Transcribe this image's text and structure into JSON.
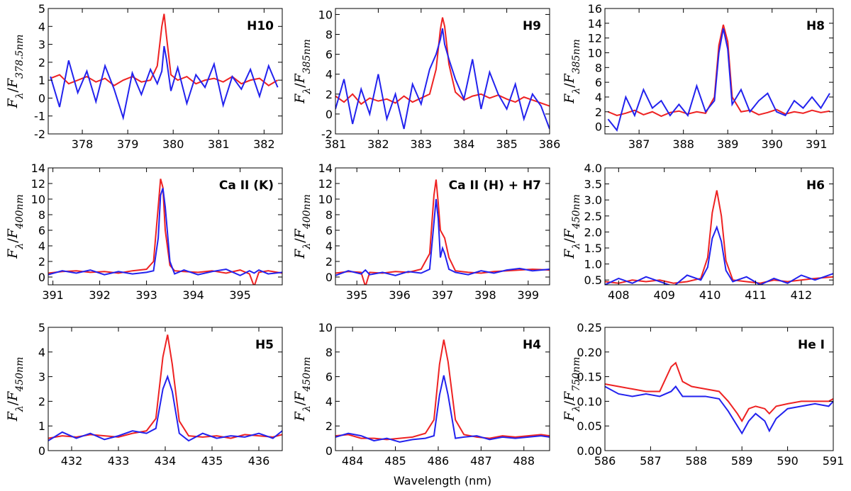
{
  "chart_data": [
    {
      "type": "line",
      "title": "H10",
      "ylabel": [
        "F",
        "λ",
        "/",
        "F",
        "378.5nm"
      ],
      "xlim": [
        377.25,
        382.4
      ],
      "xticks": [
        378,
        379,
        380,
        381,
        382
      ],
      "ylim": [
        -2,
        5
      ],
      "yticks": [
        -2,
        -1,
        0,
        1,
        2,
        3,
        4,
        5
      ],
      "x": [
        377.3,
        377.5,
        377.7,
        377.9,
        378.1,
        378.3,
        378.5,
        378.7,
        378.9,
        379.1,
        379.3,
        379.5,
        379.65,
        379.75,
        379.8,
        379.85,
        379.95,
        380.1,
        380.3,
        380.5,
        380.7,
        380.9,
        381.1,
        381.3,
        381.5,
        381.7,
        381.9,
        382.1,
        382.3
      ],
      "series": [
        {
          "color": "#ee2222",
          "values": [
            1.1,
            1.3,
            0.8,
            1.0,
            1.2,
            0.9,
            1.1,
            0.7,
            1.0,
            1.2,
            0.9,
            1.0,
            1.8,
            4.0,
            4.7,
            3.5,
            1.3,
            1.0,
            1.2,
            0.8,
            1.0,
            1.1,
            0.9,
            1.2,
            0.8,
            1.0,
            1.1,
            0.7,
            1.0
          ]
        },
        {
          "color": "#2222ee",
          "values": [
            1.2,
            -0.5,
            2.1,
            0.3,
            1.5,
            -0.2,
            1.8,
            0.5,
            -1.1,
            1.4,
            0.2,
            1.6,
            0.8,
            1.5,
            2.9,
            2.2,
            0.4,
            1.7,
            -0.3,
            1.3,
            0.6,
            1.9,
            -0.4,
            1.2,
            0.5,
            1.6,
            0.1,
            1.8,
            0.6
          ]
        }
      ]
    },
    {
      "type": "line",
      "title": "H9",
      "ylabel": [
        "F",
        "λ",
        "/",
        "F",
        "385nm"
      ],
      "xlim": [
        381,
        386
      ],
      "xticks": [
        381,
        382,
        383,
        384,
        385,
        386
      ],
      "ylim": [
        -2,
        10.6
      ],
      "yticks": [
        -2,
        0,
        2,
        4,
        6,
        8,
        10
      ],
      "x": [
        381.0,
        381.2,
        381.4,
        381.6,
        381.8,
        382.0,
        382.2,
        382.4,
        382.6,
        382.8,
        383.0,
        383.2,
        383.35,
        383.45,
        383.5,
        383.55,
        383.65,
        383.8,
        384.0,
        384.2,
        384.4,
        384.6,
        384.8,
        385.0,
        385.2,
        385.4,
        385.6,
        385.8,
        386.0
      ],
      "series": [
        {
          "color": "#ee2222",
          "values": [
            1.8,
            1.2,
            2.0,
            1.0,
            1.6,
            1.3,
            1.5,
            1.1,
            1.8,
            1.2,
            1.6,
            2.0,
            4.5,
            8.5,
            9.7,
            8.8,
            5.0,
            2.2,
            1.4,
            1.8,
            2.0,
            1.6,
            1.9,
            1.5,
            1.2,
            1.7,
            1.4,
            1.1,
            0.8
          ]
        },
        {
          "color": "#2222ee",
          "values": [
            0.5,
            3.5,
            -1.0,
            2.5,
            0.0,
            4.0,
            -0.5,
            2.0,
            -1.5,
            3.0,
            1.0,
            4.5,
            6.0,
            7.5,
            8.6,
            7.0,
            5.5,
            3.5,
            1.5,
            5.5,
            0.5,
            4.2,
            2.0,
            0.5,
            3.0,
            -0.5,
            2.0,
            0.8,
            -1.5
          ]
        }
      ]
    },
    {
      "type": "line",
      "title": "H8",
      "ylabel": [
        "F",
        "λ",
        "/",
        "F",
        "385nm"
      ],
      "xlim": [
        386.23,
        391.38
      ],
      "xticks": [
        387,
        388,
        389,
        390,
        391
      ],
      "ylim": [
        -1,
        16
      ],
      "yticks": [
        0,
        2,
        4,
        6,
        8,
        10,
        12,
        14,
        16
      ],
      "x": [
        386.3,
        386.5,
        386.7,
        386.9,
        387.1,
        387.3,
        387.5,
        387.7,
        387.9,
        388.1,
        388.3,
        388.5,
        388.7,
        388.8,
        388.9,
        389.0,
        389.1,
        389.3,
        389.5,
        389.7,
        389.9,
        390.1,
        390.3,
        390.5,
        390.7,
        390.9,
        391.1,
        391.3
      ],
      "series": [
        {
          "color": "#ee2222",
          "values": [
            2.0,
            1.5,
            1.8,
            2.2,
            1.6,
            2.0,
            1.4,
            1.9,
            2.1,
            1.7,
            2.0,
            1.8,
            4.0,
            11.0,
            13.8,
            11.5,
            4.0,
            2.0,
            2.2,
            1.6,
            1.9,
            2.3,
            1.7,
            2.0,
            1.8,
            2.2,
            1.9,
            2.1
          ]
        },
        {
          "color": "#2222ee",
          "values": [
            1.0,
            -0.5,
            4.0,
            1.5,
            5.0,
            2.5,
            3.5,
            1.5,
            3.0,
            1.5,
            5.5,
            2.0,
            3.5,
            10.0,
            13.3,
            10.5,
            3.0,
            5.0,
            2.0,
            3.5,
            4.5,
            2.0,
            1.5,
            3.5,
            2.5,
            4.0,
            2.5,
            4.5
          ]
        }
      ]
    },
    {
      "type": "line",
      "title": "Ca II (K)",
      "ylabel": [
        "F",
        "λ",
        "/",
        "F",
        "400nm"
      ],
      "xlim": [
        390.9,
        395.9
      ],
      "xticks": [
        391,
        392,
        393,
        394,
        395
      ],
      "ylim": [
        -1,
        14
      ],
      "yticks": [
        0,
        2,
        4,
        6,
        8,
        10,
        12,
        14
      ],
      "x": [
        390.9,
        391.2,
        391.5,
        391.8,
        392.1,
        392.4,
        392.7,
        393.0,
        393.15,
        393.25,
        393.3,
        393.35,
        393.4,
        393.5,
        393.6,
        393.8,
        394.1,
        394.4,
        394.7,
        395.0,
        395.2,
        395.3,
        395.4,
        395.6,
        395.9
      ],
      "series": [
        {
          "color": "#ee2222",
          "values": [
            0.5,
            0.7,
            0.8,
            0.6,
            0.7,
            0.5,
            0.8,
            1.0,
            2.0,
            9.0,
            12.6,
            11.5,
            6.0,
            1.5,
            0.8,
            0.7,
            0.6,
            0.8,
            0.5,
            0.9,
            0.4,
            -1.2,
            0.6,
            0.8,
            0.5
          ]
        },
        {
          "color": "#2222ee",
          "values": [
            0.3,
            0.8,
            0.5,
            0.9,
            0.3,
            0.7,
            0.4,
            0.6,
            0.8,
            5.0,
            10.5,
            11.4,
            9.0,
            2.0,
            0.4,
            0.9,
            0.3,
            0.7,
            1.0,
            0.2,
            0.8,
            0.5,
            0.9,
            0.4,
            0.6
          ]
        }
      ]
    },
    {
      "type": "line",
      "title": "Ca II (H) + H7",
      "ylabel": [
        "F",
        "λ",
        "/",
        "F",
        "400nm"
      ],
      "xlim": [
        394.5,
        399.5
      ],
      "xticks": [
        395,
        396,
        397,
        398,
        399
      ],
      "ylim": [
        -1,
        14
      ],
      "yticks": [
        0,
        2,
        4,
        6,
        8,
        10,
        12,
        14
      ],
      "x": [
        394.5,
        394.8,
        395.1,
        395.2,
        395.3,
        395.6,
        395.9,
        396.2,
        396.5,
        396.7,
        396.8,
        396.85,
        396.9,
        396.95,
        397.0,
        397.05,
        397.15,
        397.3,
        397.6,
        397.9,
        398.2,
        398.5,
        398.8,
        399.1,
        399.5
      ],
      "series": [
        {
          "color": "#ee2222",
          "values": [
            0.5,
            0.7,
            0.6,
            -1.2,
            0.6,
            0.5,
            0.7,
            0.6,
            1.0,
            3.0,
            10.5,
            12.5,
            9.5,
            6.0,
            5.5,
            5.0,
            2.5,
            0.8,
            0.6,
            0.5,
            0.7,
            0.8,
            0.9,
            1.0,
            0.9
          ]
        },
        {
          "color": "#2222ee",
          "values": [
            0.2,
            0.8,
            0.4,
            0.9,
            0.3,
            0.6,
            0.2,
            0.7,
            0.5,
            1.0,
            7.0,
            10.0,
            7.5,
            2.5,
            3.7,
            3.0,
            1.0,
            0.6,
            0.3,
            0.8,
            0.5,
            0.9,
            1.1,
            0.8,
            1.0
          ]
        }
      ]
    },
    {
      "type": "line",
      "title": "H6",
      "ylabel": [
        "F",
        "λ",
        "/",
        "F",
        "450nm"
      ],
      "xlim": [
        407.7,
        412.7
      ],
      "xticks": [
        408,
        409,
        410,
        411,
        412
      ],
      "ylim": [
        0.35,
        4.0
      ],
      "yticks": [
        0.5,
        {
          "value": 1,
          "label": "1.0"
        },
        1.5,
        {
          "value": 2,
          "label": "2.0"
        },
        2.5,
        {
          "value": 3,
          "label": "3.0"
        },
        3.5,
        {
          "value": 4,
          "label": "4.0"
        }
      ],
      "x": [
        407.7,
        408.0,
        408.3,
        408.6,
        408.9,
        409.2,
        409.5,
        409.8,
        409.95,
        410.05,
        410.15,
        410.25,
        410.35,
        410.5,
        410.8,
        411.1,
        411.4,
        411.7,
        412.0,
        412.3,
        412.7
      ],
      "series": [
        {
          "color": "#ee2222",
          "values": [
            0.45,
            0.4,
            0.5,
            0.45,
            0.5,
            0.4,
            0.45,
            0.55,
            1.2,
            2.6,
            3.3,
            2.5,
            1.1,
            0.5,
            0.45,
            0.4,
            0.5,
            0.45,
            0.5,
            0.55,
            0.6
          ]
        },
        {
          "color": "#2222ee",
          "values": [
            0.35,
            0.55,
            0.4,
            0.6,
            0.45,
            0.3,
            0.65,
            0.5,
            0.9,
            1.8,
            2.15,
            1.7,
            0.8,
            0.45,
            0.6,
            0.35,
            0.55,
            0.4,
            0.65,
            0.5,
            0.7
          ]
        }
      ]
    },
    {
      "type": "line",
      "title": "H5",
      "ylabel": [
        "F",
        "λ",
        "/",
        "F",
        "450nm"
      ],
      "xlim": [
        431.5,
        436.5
      ],
      "xticks": [
        432,
        433,
        434,
        435,
        436
      ],
      "ylim": [
        0,
        5
      ],
      "yticks": [
        0,
        1,
        2,
        3,
        4,
        5
      ],
      "x": [
        431.5,
        431.8,
        432.1,
        432.4,
        432.7,
        433.0,
        433.3,
        433.6,
        433.8,
        433.95,
        434.05,
        434.15,
        434.3,
        434.5,
        434.8,
        435.1,
        435.4,
        435.7,
        436.0,
        436.3,
        436.5
      ],
      "series": [
        {
          "color": "#ee2222",
          "values": [
            0.5,
            0.6,
            0.55,
            0.65,
            0.6,
            0.55,
            0.7,
            0.8,
            1.3,
            3.8,
            4.7,
            3.5,
            1.2,
            0.6,
            0.55,
            0.6,
            0.5,
            0.65,
            0.6,
            0.55,
            0.65
          ]
        },
        {
          "color": "#2222ee",
          "values": [
            0.4,
            0.75,
            0.5,
            0.7,
            0.45,
            0.6,
            0.8,
            0.7,
            0.9,
            2.5,
            3.0,
            2.4,
            0.7,
            0.4,
            0.7,
            0.5,
            0.6,
            0.55,
            0.7,
            0.5,
            0.8
          ]
        }
      ]
    },
    {
      "type": "line",
      "title": "H4",
      "ylabel": [
        "F",
        "λ",
        "/",
        "F",
        "450nm"
      ],
      "xlabel": "Wavelength (nm)",
      "xlim": [
        483.6,
        488.6
      ],
      "xticks": [
        484,
        485,
        486,
        487,
        488
      ],
      "ylim": [
        0,
        10
      ],
      "yticks": [
        0,
        2,
        4,
        6,
        8,
        10
      ],
      "x": [
        483.6,
        483.9,
        484.2,
        484.5,
        484.8,
        485.1,
        485.4,
        485.7,
        485.9,
        486.03,
        486.13,
        486.23,
        486.4,
        486.6,
        486.9,
        487.2,
        487.5,
        487.8,
        488.1,
        488.4,
        488.6
      ],
      "series": [
        {
          "color": "#ee2222",
          "values": [
            1.2,
            1.3,
            1.0,
            1.0,
            0.9,
            1.0,
            1.1,
            1.4,
            2.5,
            7.0,
            9.0,
            7.2,
            2.5,
            1.3,
            1.1,
            1.0,
            1.2,
            1.1,
            1.2,
            1.3,
            1.2
          ]
        },
        {
          "color": "#2222ee",
          "values": [
            1.1,
            1.4,
            1.2,
            0.8,
            1.0,
            0.7,
            0.9,
            1.0,
            1.2,
            4.5,
            6.1,
            4.5,
            1.0,
            1.1,
            1.2,
            0.9,
            1.1,
            1.0,
            1.1,
            1.2,
            1.1
          ]
        }
      ]
    },
    {
      "type": "line",
      "title": "He I",
      "ylabel": [
        "F",
        "λ",
        "/",
        "F",
        "750nm"
      ],
      "xlim": [
        586,
        591
      ],
      "xticks": [
        586,
        587,
        588,
        589,
        590,
        591
      ],
      "ylim": [
        0,
        0.25
      ],
      "yticks": [
        {
          "value": 0,
          "label": "0.00"
        },
        0.05,
        {
          "value": 0.1,
          "label": "0.10"
        },
        0.15,
        {
          "value": 0.2,
          "label": "0.20"
        },
        0.25
      ],
      "x": [
        586.0,
        586.3,
        586.6,
        586.9,
        587.2,
        587.45,
        587.55,
        587.7,
        587.9,
        588.2,
        588.5,
        588.7,
        588.9,
        589.0,
        589.15,
        589.3,
        589.5,
        589.6,
        589.75,
        590.0,
        590.3,
        590.6,
        590.9,
        591.0
      ],
      "series": [
        {
          "color": "#ee2222",
          "values": [
            0.135,
            0.13,
            0.125,
            0.12,
            0.12,
            0.17,
            0.178,
            0.14,
            0.13,
            0.125,
            0.12,
            0.1,
            0.075,
            0.06,
            0.085,
            0.09,
            0.085,
            0.075,
            0.09,
            0.095,
            0.1,
            0.1,
            0.1,
            0.105
          ]
        },
        {
          "color": "#2222ee",
          "values": [
            0.13,
            0.115,
            0.11,
            0.115,
            0.11,
            0.12,
            0.13,
            0.11,
            0.11,
            0.11,
            0.105,
            0.08,
            0.05,
            0.035,
            0.06,
            0.075,
            0.06,
            0.04,
            0.065,
            0.085,
            0.09,
            0.095,
            0.09,
            0.1
          ]
        }
      ]
    }
  ]
}
